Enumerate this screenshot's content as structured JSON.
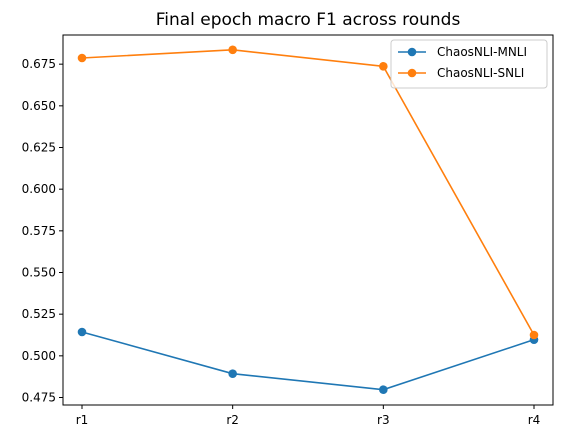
{
  "chart_data": {
    "type": "line",
    "title": "Final epoch macro F1 across rounds",
    "xlabel": "",
    "ylabel": "",
    "categories": [
      "r1",
      "r2",
      "r3",
      "r4"
    ],
    "ylim": [
      0.4705,
      0.6925
    ],
    "yticks": [
      0.475,
      0.5,
      0.525,
      0.55,
      0.575,
      0.6,
      0.625,
      0.65,
      0.675
    ],
    "ytick_labels": [
      "0.475",
      "0.500",
      "0.525",
      "0.550",
      "0.575",
      "0.600",
      "0.625",
      "0.650",
      "0.675"
    ],
    "grid": false,
    "legend_position": "top-right",
    "series": [
      {
        "name": "ChaosNLI-MNLI",
        "color": "#1f77b4",
        "values": [
          0.5143,
          0.4893,
          0.4797,
          0.5097
        ]
      },
      {
        "name": "ChaosNLI-SNLI",
        "color": "#ff7f0e",
        "values": [
          0.6787,
          0.6836,
          0.6737,
          0.5125
        ]
      }
    ]
  }
}
